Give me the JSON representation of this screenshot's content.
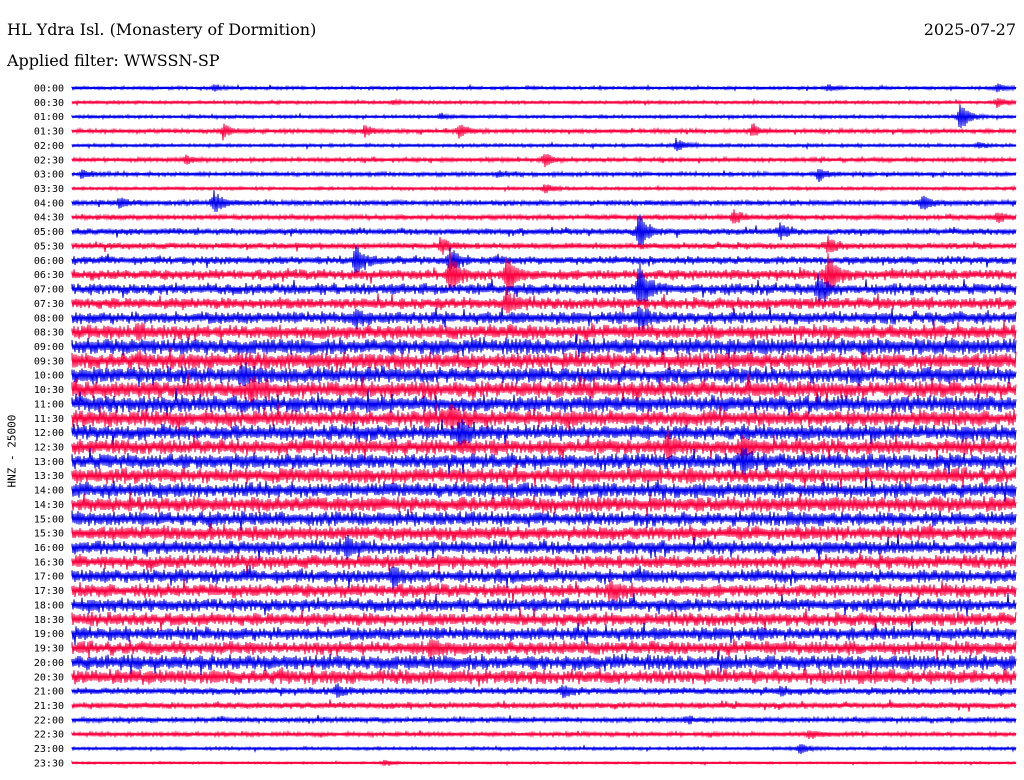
{
  "header": {
    "station": "HL Ydra Isl. (Monastery of Dormition)",
    "date": "2025-07-27",
    "filter": "Applied filter: WWSSN-SP"
  },
  "chart_data": {
    "type": "line",
    "chart_kind": "helicorder",
    "ylabel": "HNZ - 25000",
    "colors": {
      "blue": "#0000ee",
      "red": "#ff0040"
    },
    "grid": false,
    "row_times": [
      "00:00",
      "00:30",
      "01:00",
      "01:30",
      "02:00",
      "02:30",
      "03:00",
      "03:30",
      "04:00",
      "04:30",
      "05:00",
      "05:30",
      "06:00",
      "06:30",
      "07:00",
      "07:30",
      "08:00",
      "08:30",
      "09:00",
      "09:30",
      "10:00",
      "10:30",
      "11:00",
      "11:30",
      "12:00",
      "12:30",
      "13:00",
      "13:30",
      "14:00",
      "14:30",
      "15:00",
      "15:30",
      "16:00",
      "16:30",
      "17:00",
      "17:30",
      "18:00",
      "18:30",
      "19:00",
      "19:30",
      "20:00",
      "20:30",
      "21:00",
      "21:30",
      "22:00",
      "22:30",
      "23:00",
      "23:30"
    ],
    "noise_level": [
      1.5,
      1.5,
      1.5,
      2,
      1.5,
      2,
      2,
      1.5,
      2.5,
      2.5,
      3,
      3,
      4,
      5,
      5.5,
      5.5,
      6,
      7,
      8,
      8,
      8,
      8,
      8,
      8,
      7.5,
      7.5,
      7.5,
      7.5,
      7.5,
      7.5,
      7,
      7,
      6.5,
      6.5,
      6.5,
      6.5,
      6.5,
      6.5,
      6.5,
      6.5,
      7.5,
      7,
      3.5,
      3,
      2.5,
      2,
      1.5,
      1
    ],
    "events": [
      {
        "row": 0,
        "x": 0.15,
        "amp": 3
      },
      {
        "row": 0,
        "x": 0.8,
        "amp": 3
      },
      {
        "row": 0,
        "x": 0.98,
        "amp": 4
      },
      {
        "row": 1,
        "x": 0.34,
        "amp": 2
      },
      {
        "row": 1,
        "x": 0.98,
        "amp": 5
      },
      {
        "row": 2,
        "x": 0.39,
        "amp": 3
      },
      {
        "row": 2,
        "x": 0.94,
        "amp": 16
      },
      {
        "row": 3,
        "x": 0.16,
        "amp": 7
      },
      {
        "row": 3,
        "x": 0.31,
        "amp": 6
      },
      {
        "row": 3,
        "x": 0.41,
        "amp": 7
      },
      {
        "row": 3,
        "x": 0.72,
        "amp": 6
      },
      {
        "row": 4,
        "x": 0.64,
        "amp": 7
      },
      {
        "row": 4,
        "x": 0.96,
        "amp": 3
      },
      {
        "row": 5,
        "x": 0.12,
        "amp": 5
      },
      {
        "row": 5,
        "x": 0.5,
        "amp": 6
      },
      {
        "row": 6,
        "x": 0.01,
        "amp": 5
      },
      {
        "row": 6,
        "x": 0.45,
        "amp": 3
      },
      {
        "row": 6,
        "x": 0.79,
        "amp": 7
      },
      {
        "row": 7,
        "x": 0.5,
        "amp": 5
      },
      {
        "row": 8,
        "x": 0.05,
        "amp": 5
      },
      {
        "row": 8,
        "x": 0.15,
        "amp": 12
      },
      {
        "row": 8,
        "x": 0.9,
        "amp": 8
      },
      {
        "row": 9,
        "x": 0.7,
        "amp": 8
      },
      {
        "row": 9,
        "x": 0.98,
        "amp": 5
      },
      {
        "row": 10,
        "x": 0.6,
        "amp": 22
      },
      {
        "row": 10,
        "x": 0.75,
        "amp": 8
      },
      {
        "row": 11,
        "x": 0.39,
        "amp": 8
      },
      {
        "row": 11,
        "x": 0.8,
        "amp": 8
      },
      {
        "row": 12,
        "x": 0.3,
        "amp": 12
      },
      {
        "row": 12,
        "x": 0.4,
        "amp": 12
      },
      {
        "row": 13,
        "x": 0.4,
        "amp": 22
      },
      {
        "row": 13,
        "x": 0.46,
        "amp": 22
      },
      {
        "row": 13,
        "x": 0.8,
        "amp": 22
      },
      {
        "row": 14,
        "x": 0.6,
        "amp": 25
      },
      {
        "row": 14,
        "x": 0.79,
        "amp": 12
      },
      {
        "row": 15,
        "x": 0.46,
        "amp": 12
      },
      {
        "row": 16,
        "x": 0.6,
        "amp": 14
      },
      {
        "row": 16,
        "x": 0.3,
        "amp": 8
      },
      {
        "row": 17,
        "x": 0.07,
        "amp": 8
      },
      {
        "row": 20,
        "x": 0.18,
        "amp": 10
      },
      {
        "row": 21,
        "x": 0.19,
        "amp": 10
      },
      {
        "row": 23,
        "x": 0.4,
        "amp": 10
      },
      {
        "row": 24,
        "x": 0.41,
        "amp": 12
      },
      {
        "row": 25,
        "x": 0.63,
        "amp": 12
      },
      {
        "row": 25,
        "x": 0.71,
        "amp": 10
      },
      {
        "row": 26,
        "x": 0.71,
        "amp": 12
      },
      {
        "row": 32,
        "x": 0.29,
        "amp": 12
      },
      {
        "row": 34,
        "x": 0.34,
        "amp": 10
      },
      {
        "row": 35,
        "x": 0.57,
        "amp": 10
      },
      {
        "row": 39,
        "x": 0.38,
        "amp": 10
      },
      {
        "row": 42,
        "x": 0.28,
        "amp": 6
      },
      {
        "row": 42,
        "x": 0.52,
        "amp": 6
      },
      {
        "row": 42,
        "x": 0.75,
        "amp": 5
      },
      {
        "row": 44,
        "x": 0.65,
        "amp": 4
      },
      {
        "row": 45,
        "x": 0.78,
        "amp": 5
      },
      {
        "row": 46,
        "x": 0.77,
        "amp": 6
      },
      {
        "row": 47,
        "x": 0.33,
        "amp": 3
      }
    ]
  }
}
